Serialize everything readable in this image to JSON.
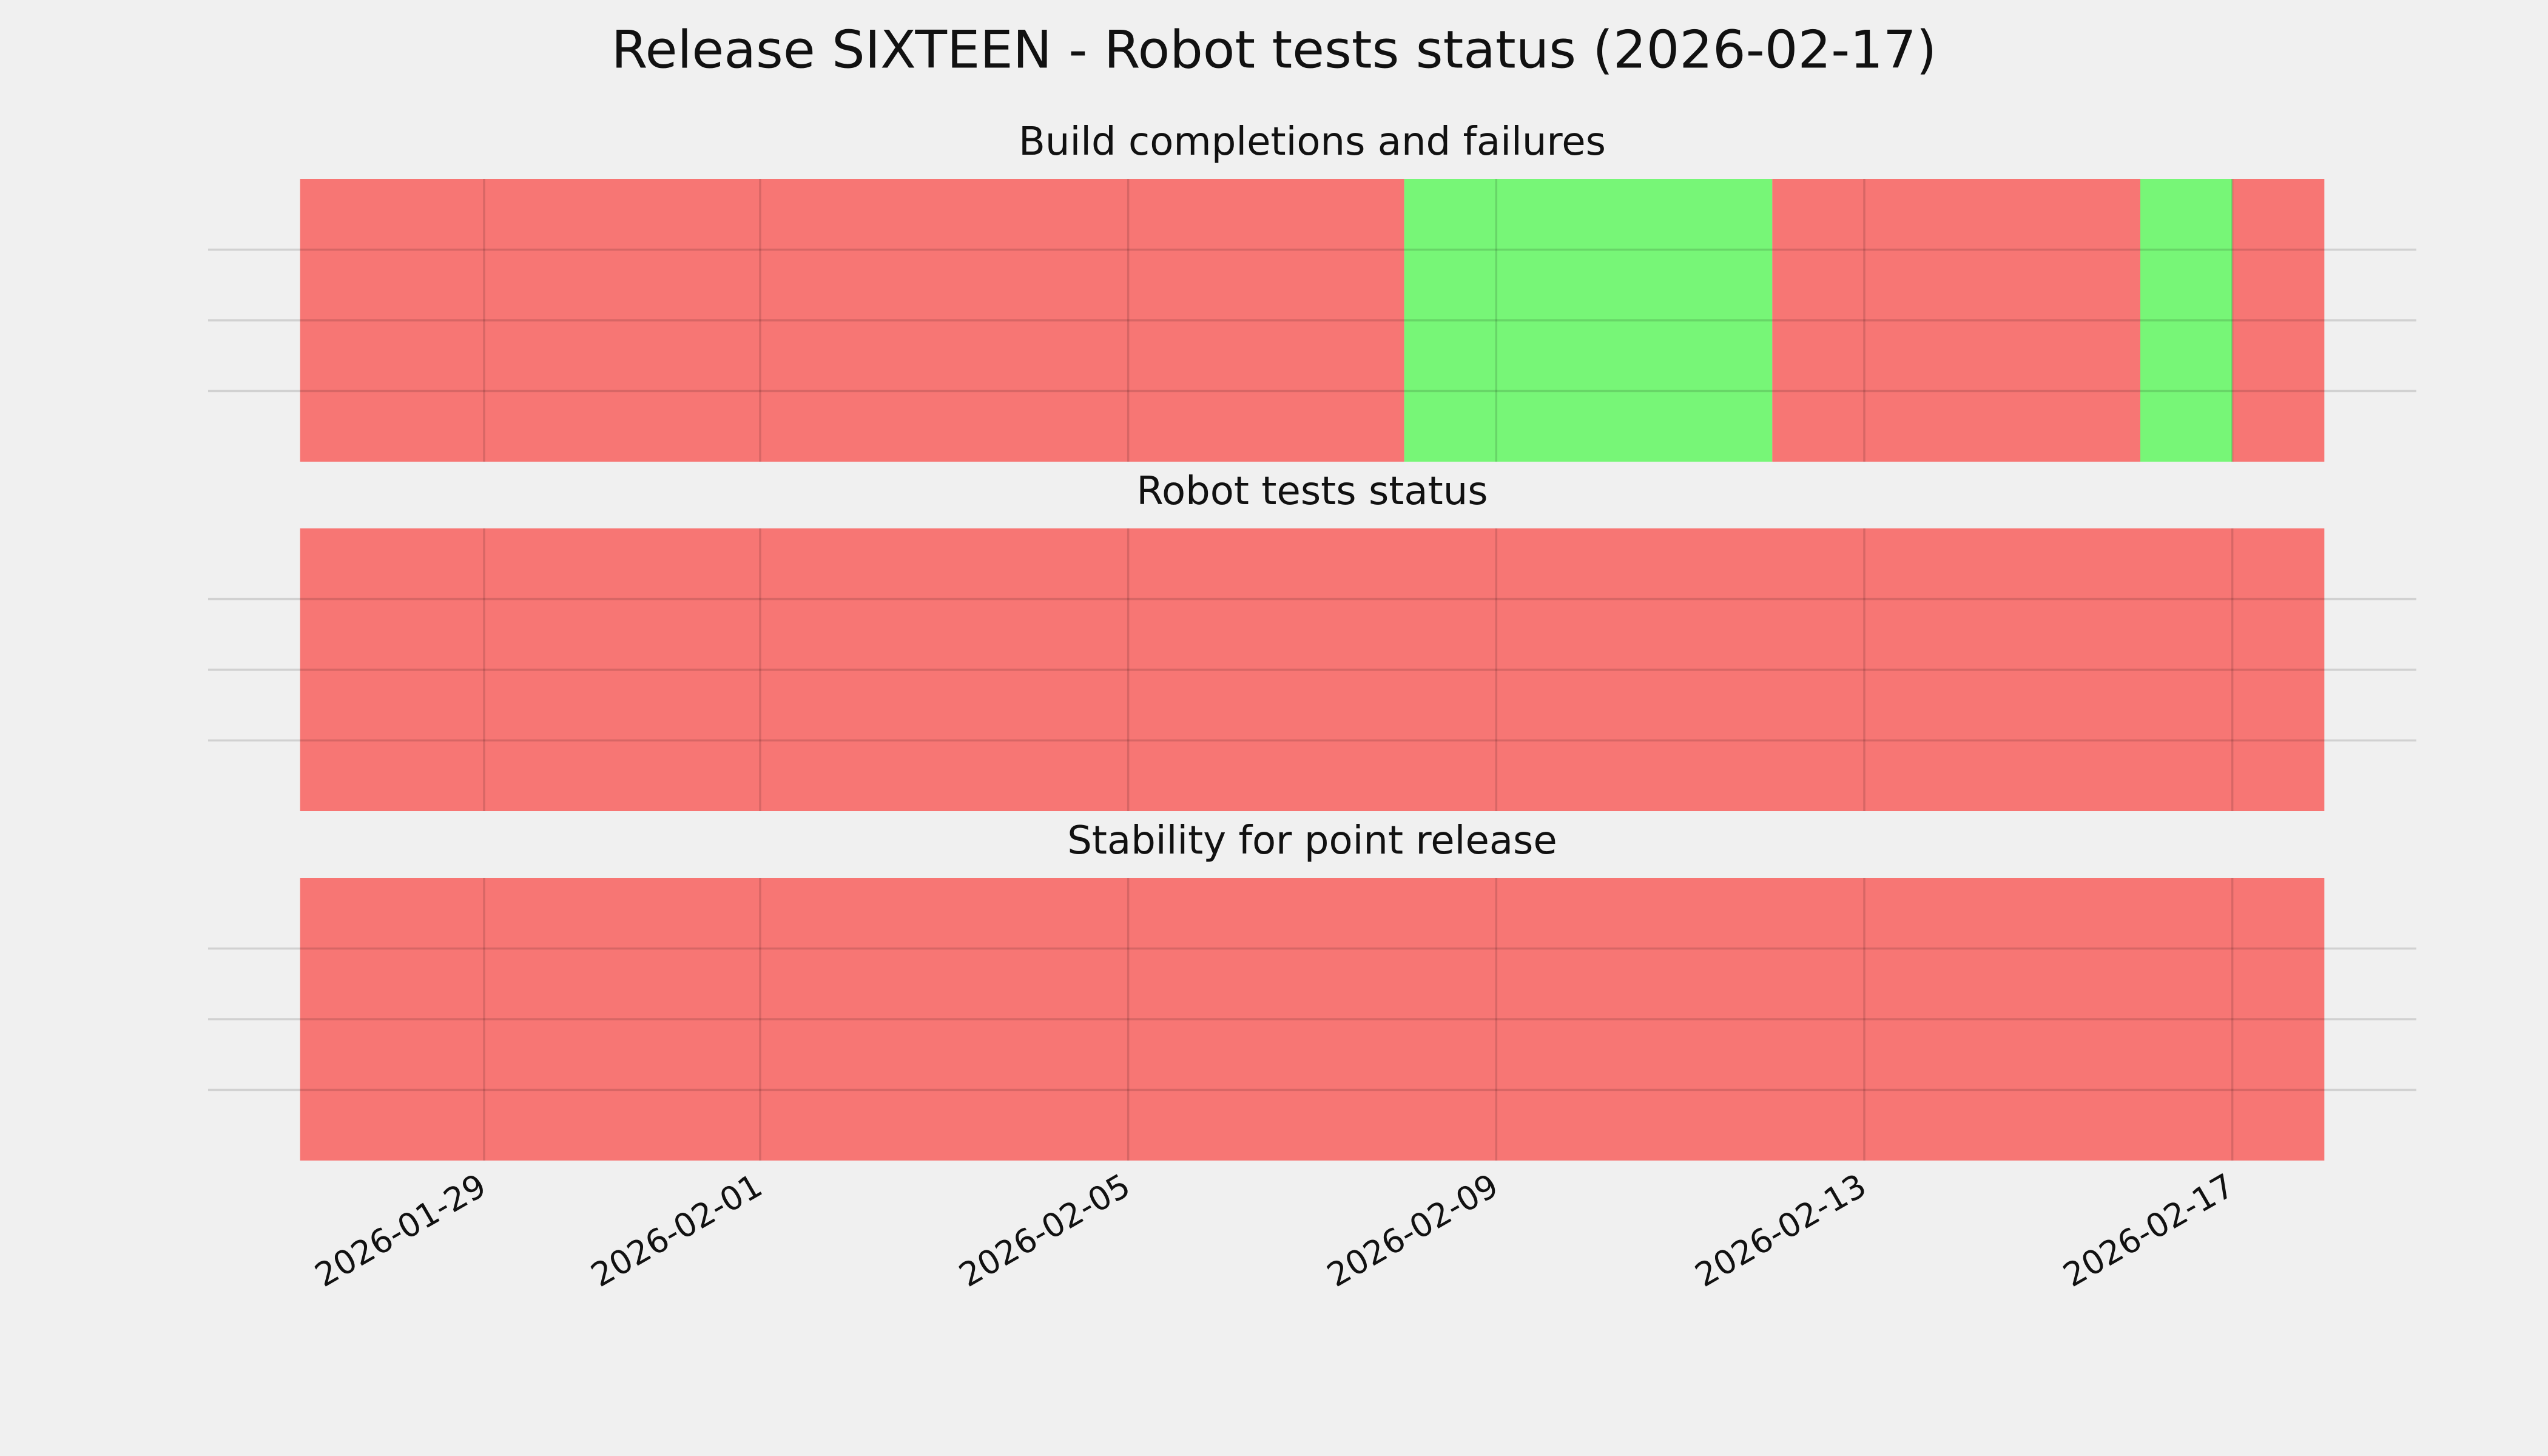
{
  "chart_data": {
    "type": "timeline",
    "title": "Release SIXTEEN - Robot tests status (2026-02-17)",
    "xlim": [
      "2026-01-26",
      "2026-02-19"
    ],
    "xticks": [
      "2026-01-29",
      "2026-02-01",
      "2026-02-05",
      "2026-02-09",
      "2026-02-13",
      "2026-02-17"
    ],
    "grid": true,
    "panels": [
      {
        "title": "Build completions and failures",
        "x": [
          "2026-01-27",
          "2026-02-08",
          "2026-02-12",
          "2026-02-16",
          "2026-02-17",
          "2026-02-18"
        ],
        "colors": [
          "#f77674",
          "#77f677",
          "#f77674",
          "#77f677",
          "#f77674"
        ],
        "ylim": [
          0,
          1
        ],
        "yticks": [
          0.25,
          0.5,
          0.75
        ]
      },
      {
        "title": "Robot tests status",
        "x": [
          "2026-01-27",
          "2026-02-18"
        ],
        "colors": [
          "#f77674"
        ],
        "ylim": [
          0,
          1
        ],
        "yticks": [
          0.25,
          0.5,
          0.75
        ]
      },
      {
        "title": "Stability for point release",
        "x": [
          "2026-01-27",
          "2026-02-18"
        ],
        "colors": [
          "#f77674"
        ],
        "ylim": [
          0,
          1
        ],
        "yticks": [
          0.25,
          0.5,
          0.75
        ]
      }
    ]
  }
}
